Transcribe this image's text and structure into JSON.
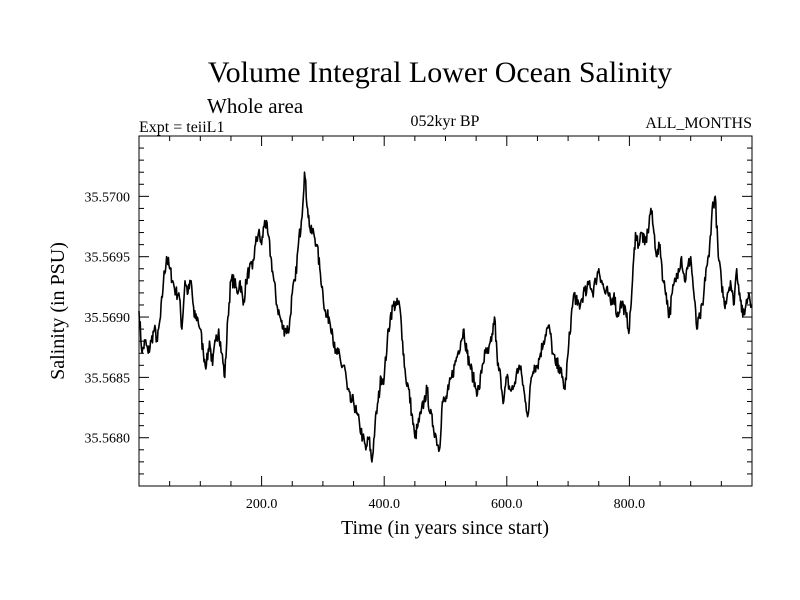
{
  "chart_data": {
    "type": "line",
    "title": "Volume Integral Lower Ocean Salinity",
    "subtitle": "Whole area",
    "experiment": "Expt = teiiL1",
    "period": "052kyr BP",
    "season": "ALL_MONTHS",
    "xlabel": "Time (in years since start)",
    "ylabel": "Salinity (in PSU)",
    "xlim": [
      0,
      1000
    ],
    "ylim": [
      35.5676,
      35.5705
    ],
    "xticks": [
      200,
      400,
      600,
      800
    ],
    "xtick_labels": [
      "200.0",
      "400.0",
      "600.0",
      "800.0"
    ],
    "yticks": [
      35.568,
      35.5685,
      35.569,
      35.5695,
      35.57
    ],
    "ytick_labels": [
      "35.5680",
      "35.5685",
      "35.5690",
      "35.5695",
      "35.5700"
    ],
    "grid": false,
    "series": [
      {
        "color": "#000000",
        "x": [
          0,
          5,
          10,
          15,
          20,
          25,
          30,
          35,
          40,
          45,
          50,
          55,
          60,
          65,
          70,
          75,
          80,
          85,
          90,
          95,
          100,
          105,
          110,
          115,
          120,
          125,
          130,
          135,
          140,
          145,
          150,
          155,
          160,
          165,
          170,
          175,
          180,
          185,
          190,
          195,
          200,
          205,
          210,
          215,
          220,
          225,
          230,
          235,
          240,
          245,
          250,
          255,
          260,
          265,
          270,
          275,
          280,
          285,
          290,
          295,
          300,
          305,
          310,
          315,
          320,
          325,
          330,
          335,
          340,
          345,
          350,
          355,
          360,
          365,
          370,
          375,
          380,
          385,
          390,
          395,
          400,
          405,
          410,
          415,
          420,
          425,
          430,
          435,
          440,
          445,
          450,
          455,
          460,
          465,
          470,
          475,
          480,
          485,
          490,
          495,
          500,
          505,
          510,
          515,
          520,
          525,
          530,
          535,
          540,
          545,
          550,
          555,
          560,
          565,
          570,
          575,
          580,
          585,
          590,
          595,
          600,
          605,
          610,
          615,
          620,
          625,
          630,
          635,
          640,
          645,
          650,
          655,
          660,
          665,
          670,
          675,
          680,
          685,
          690,
          695,
          700,
          705,
          710,
          715,
          720,
          725,
          730,
          735,
          740,
          745,
          750,
          755,
          760,
          765,
          770,
          775,
          780,
          785,
          790,
          795,
          800,
          805,
          810,
          815,
          820,
          825,
          830,
          835,
          840,
          845,
          850,
          855,
          860,
          865,
          870,
          875,
          880,
          885,
          890,
          895,
          900,
          905,
          910,
          915,
          920,
          925,
          930,
          935,
          940,
          945,
          950,
          955,
          960,
          965,
          970,
          975,
          980,
          985,
          990,
          995,
          1000
        ],
        "y": [
          35.56905,
          35.5687,
          35.5688,
          35.5687,
          35.5688,
          35.5689,
          35.5688,
          35.569,
          35.5693,
          35.5695,
          35.5694,
          35.5693,
          35.5692,
          35.5692,
          35.5689,
          35.5693,
          35.5692,
          35.5693,
          35.569,
          35.569,
          35.5689,
          35.5687,
          35.5686,
          35.5688,
          35.5686,
          35.5688,
          35.5689,
          35.5687,
          35.5685,
          35.569,
          35.5693,
          35.5693,
          35.5692,
          35.5693,
          35.5691,
          35.5693,
          35.5694,
          35.5694,
          35.5696,
          35.5697,
          35.5696,
          35.5698,
          35.5697,
          35.5695,
          35.5693,
          35.5691,
          35.569,
          35.5689,
          35.5689,
          35.5689,
          35.5692,
          35.5693,
          35.5696,
          35.5698,
          35.5702,
          35.5699,
          35.5697,
          35.5697,
          35.5696,
          35.5694,
          35.5692,
          35.569,
          35.569,
          35.5689,
          35.5687,
          35.5687,
          35.5686,
          35.5686,
          35.5684,
          35.5683,
          35.5683,
          35.5682,
          35.5681,
          35.568,
          35.5679,
          35.568,
          35.5678,
          35.5681,
          35.5683,
          35.5685,
          35.5685,
          35.5688,
          35.569,
          35.5691,
          35.5691,
          35.5691,
          35.5688,
          35.5685,
          35.5684,
          35.5682,
          35.568,
          35.5681,
          35.5682,
          35.5683,
          35.5684,
          35.5682,
          35.5681,
          35.568,
          35.5679,
          35.5683,
          35.5683,
          35.5684,
          35.5685,
          35.5686,
          35.5687,
          35.5688,
          35.5689,
          35.5687,
          35.5686,
          35.5685,
          35.5684,
          35.5684,
          35.5686,
          35.5687,
          35.5687,
          35.5688,
          35.569,
          35.5686,
          35.5685,
          35.5683,
          35.5685,
          35.5684,
          35.5684,
          35.5685,
          35.5686,
          35.5685,
          35.5683,
          35.5682,
          35.5685,
          35.5686,
          35.5686,
          35.5687,
          35.5688,
          35.5689,
          35.5689,
          35.5687,
          35.5686,
          35.5686,
          35.5685,
          35.5684,
          35.5687,
          35.569,
          35.5692,
          35.5691,
          35.5691,
          35.5692,
          35.5692,
          35.5693,
          35.5692,
          35.5693,
          35.5694,
          35.5693,
          35.5692,
          35.5692,
          35.5691,
          35.5692,
          35.569,
          35.5691,
          35.5691,
          35.569,
          35.5689,
          35.5693,
          35.5697,
          35.5696,
          35.5697,
          35.5696,
          35.5697,
          35.5699,
          35.5697,
          35.5695,
          35.5696,
          35.5693,
          35.5692,
          35.569,
          35.5692,
          35.5693,
          35.5694,
          35.5695,
          35.5693,
          35.5694,
          35.5695,
          35.5692,
          35.5689,
          35.569,
          35.5691,
          35.5694,
          35.5695,
          35.5699,
          35.57,
          35.5695,
          35.5693,
          35.5691,
          35.5692,
          35.5693,
          35.5691,
          35.5694,
          35.5692,
          35.569,
          35.5691,
          35.5692,
          35.5691
        ]
      }
    ]
  }
}
